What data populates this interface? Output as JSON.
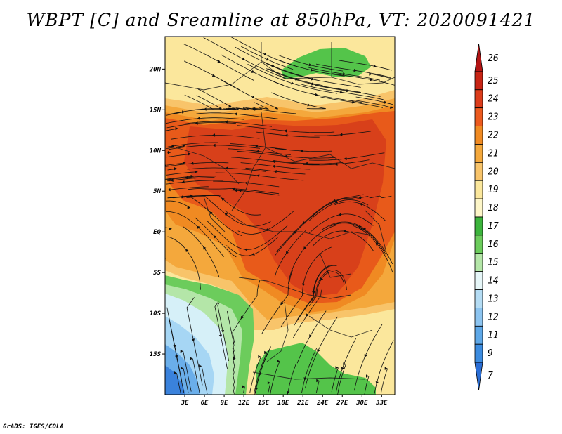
{
  "title": "WBPT [C] and Sreamline at 850hPa, VT: 2020091421",
  "credit": "GrADS: IGES/COLA",
  "map": {
    "lon_range": [
      0,
      35
    ],
    "lat_range": [
      -20,
      24
    ],
    "lat_ticks": [
      {
        "value": 20,
        "label": "20N"
      },
      {
        "value": 15,
        "label": "15N"
      },
      {
        "value": 10,
        "label": "10N"
      },
      {
        "value": 5,
        "label": "5N"
      },
      {
        "value": 0,
        "label": "EQ"
      },
      {
        "value": -5,
        "label": "5S"
      },
      {
        "value": -10,
        "label": "10S"
      },
      {
        "value": -15,
        "label": "15S"
      }
    ],
    "lon_ticks": [
      {
        "value": 3,
        "label": "3E"
      },
      {
        "value": 6,
        "label": "6E"
      },
      {
        "value": 9,
        "label": "9E"
      },
      {
        "value": 12,
        "label": "12E"
      },
      {
        "value": 15,
        "label": "15E"
      },
      {
        "value": 18,
        "label": "18E"
      },
      {
        "value": 21,
        "label": "21E"
      },
      {
        "value": 24,
        "label": "24E"
      },
      {
        "value": 27,
        "label": "27E"
      },
      {
        "value": 30,
        "label": "30E"
      },
      {
        "value": 33,
        "label": "33E"
      }
    ],
    "regions": [
      {
        "name": "warm-band-19",
        "level": 19,
        "color": "#fbe79c"
      },
      {
        "name": "zone-20",
        "level": 20,
        "color": "#f8c46a"
      },
      {
        "name": "zone-21",
        "level": 21,
        "color": "#f4a83c"
      },
      {
        "name": "zone-22",
        "level": 22,
        "color": "#f08a22"
      },
      {
        "name": "zone-23",
        "level": 23,
        "color": "#e85a1a"
      },
      {
        "name": "zone-24",
        "level": 24,
        "color": "#d8401a"
      },
      {
        "name": "green-north",
        "level": 17,
        "color": "#54c44a"
      },
      {
        "name": "green-south",
        "level": 17,
        "color": "#54c44a"
      },
      {
        "name": "green-southwest",
        "level": 17,
        "color": "#6ccc5c"
      },
      {
        "name": "pale-green-southwest",
        "level": 16,
        "color": "#b4e6a8"
      },
      {
        "name": "pale-blue-southwest",
        "level": 15,
        "color": "#d6f0f8"
      },
      {
        "name": "light-blue-southwest",
        "level": 14,
        "color": "#a6d6f4"
      },
      {
        "name": "blue-southwest",
        "level": 13,
        "color": "#6aaeea"
      },
      {
        "name": "deep-blue-southwest",
        "level": 12,
        "color": "#3a82dc"
      }
    ]
  },
  "colorbar": {
    "levels": [
      {
        "label": "26",
        "color": "#b41414"
      },
      {
        "label": "25",
        "color": "#c82414"
      },
      {
        "label": "24",
        "color": "#dc3c1a"
      },
      {
        "label": "23",
        "color": "#ec5a1e"
      },
      {
        "label": "22",
        "color": "#f08a22"
      },
      {
        "label": "21",
        "color": "#f4a83c"
      },
      {
        "label": "20",
        "color": "#f8c46a"
      },
      {
        "label": "19",
        "color": "#fbe79c"
      },
      {
        "label": "18",
        "color": "#fdf6c8"
      },
      {
        "label": "17",
        "color": "#3cb43c"
      },
      {
        "label": "16",
        "color": "#6ccc5c"
      },
      {
        "label": "15",
        "color": "#b4e6a8"
      },
      {
        "label": "14",
        "color": "#e6f6f8"
      },
      {
        "label": "13",
        "color": "#b4dcf4"
      },
      {
        "label": "12",
        "color": "#8cc4f0"
      },
      {
        "label": "11",
        "color": "#5ea8e8"
      },
      {
        "label": "9",
        "color": "#3c8ce0"
      },
      {
        "label": "7",
        "color": "#2a6ed6"
      }
    ]
  }
}
